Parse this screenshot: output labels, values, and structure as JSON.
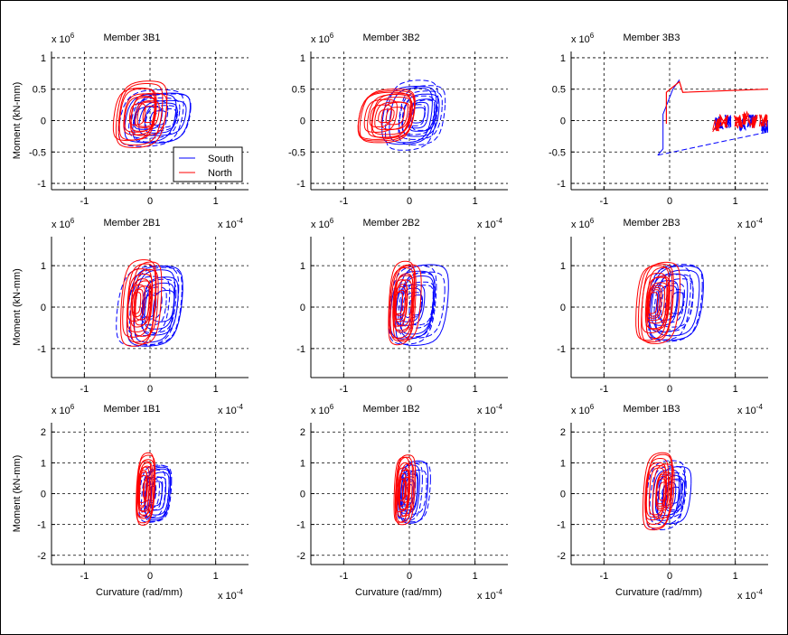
{
  "figure": {
    "background": "#ffffff",
    "axes_color": "#000000",
    "grid_color": "#000000"
  },
  "series_colors": {
    "South": "#0000ff",
    "North": "#ff0000"
  },
  "legend": {
    "entries": [
      "South",
      "North"
    ],
    "panel": 0,
    "placement": "bottom-right"
  },
  "labels": {
    "ylabel": "Moment (kN-mm)",
    "xlabel": "Curvature (rad/mm)",
    "y_exponent_base": "x 10",
    "y_exponent_power": "6",
    "x_exponent_base": "x 10",
    "x_exponent_power": "-4"
  },
  "chart_data": [
    {
      "type": "line",
      "title": "Member 3B1",
      "xlim": [
        -1.5,
        1.5
      ],
      "ylim": [
        -1.1,
        1.1
      ],
      "xticks": [
        -1,
        0,
        1
      ],
      "yticks": [
        -1,
        -0.5,
        0,
        0.5,
        1
      ],
      "ytick_labels": [
        "-1",
        "-0.5",
        "0",
        "0.5",
        "1"
      ],
      "south": {
        "x_min": -0.55,
        "x_max": 0.7,
        "y_min": -0.5,
        "y_max": 0.58
      },
      "north": {
        "x_min": -0.6,
        "x_max": 0.35,
        "y_min": -0.5,
        "y_max": 0.7
      }
    },
    {
      "type": "line",
      "title": "Member 3B2",
      "xlim": [
        -1.5,
        1.5
      ],
      "ylim": [
        -1.1,
        1.1
      ],
      "xticks": [
        -1,
        0,
        1
      ],
      "yticks": [
        -1,
        -0.5,
        0,
        0.5,
        1
      ],
      "ytick_labels": [
        "-1",
        "-0.5",
        "0",
        "0.5",
        "1"
      ],
      "south": {
        "x_min": -0.4,
        "x_max": 0.6,
        "y_min": -0.55,
        "y_max": 0.72
      },
      "north": {
        "x_min": -0.85,
        "x_max": 0.25,
        "y_min": -0.45,
        "y_max": 0.6
      }
    },
    {
      "type": "line",
      "title": "Member 3B3",
      "xlim": [
        -1.5,
        1.5
      ],
      "ylim": [
        -1.1,
        1.1
      ],
      "xticks": [
        -1,
        0,
        1
      ],
      "yticks": [
        -1,
        -0.5,
        0,
        0.5,
        1
      ],
      "ytick_labels": [
        "-1",
        "-0.5",
        "0",
        "0.5",
        "1"
      ],
      "south_line": [
        [
          -0.18,
          -0.55
        ],
        [
          1.5,
          -0.18
        ]
      ],
      "south_step": [
        [
          -0.18,
          -0.55
        ],
        [
          -0.1,
          -0.45
        ],
        [
          -0.1,
          0.1
        ],
        [
          0.05,
          0.5
        ],
        [
          0.15,
          0.65
        ]
      ],
      "north_line": [
        [
          -0.05,
          -0.05
        ],
        [
          -0.05,
          0.45
        ],
        [
          0.15,
          0.62
        ],
        [
          0.2,
          0.45
        ],
        [
          1.5,
          0.5
        ]
      ],
      "north_bursts": [
        [
          0.72,
          -0.08
        ],
        [
          0.82,
          -0.02
        ],
        [
          1.05,
          -0.03
        ],
        [
          1.18,
          0.02
        ],
        [
          1.28,
          -0.02
        ],
        [
          1.42,
          0.0
        ]
      ],
      "south_bursts": [
        [
          0.75,
          -0.05
        ],
        [
          0.9,
          -0.02
        ],
        [
          1.1,
          -0.06
        ],
        [
          1.25,
          -0.02
        ],
        [
          1.45,
          -0.1
        ]
      ]
    },
    {
      "type": "line",
      "title": "Member 2B1",
      "xlim": [
        -1.5,
        1.5
      ],
      "ylim": [
        -1.7,
        1.7
      ],
      "xticks": [
        -1,
        0,
        1
      ],
      "yticks": [
        -1,
        0,
        1
      ],
      "ytick_labels": [
        "-1",
        "0",
        "1"
      ],
      "south": {
        "x_min": -0.45,
        "x_max": 0.62,
        "y_min": -1.2,
        "y_max": 1.25
      },
      "north": {
        "x_min": -0.45,
        "x_max": 0.2,
        "y_min": -1.15,
        "y_max": 1.35
      }
    },
    {
      "type": "line",
      "title": "Member 2B2",
      "xlim": [
        -1.5,
        1.5
      ],
      "ylim": [
        -1.7,
        1.7
      ],
      "xticks": [
        -1,
        0,
        1
      ],
      "yticks": [
        -1,
        0,
        1
      ],
      "ytick_labels": [
        "-1",
        "0",
        "1"
      ],
      "south": {
        "x_min": -0.38,
        "x_max": 0.58,
        "y_min": -1.15,
        "y_max": 1.25
      },
      "north": {
        "x_min": -0.38,
        "x_max": 0.15,
        "y_min": -1.1,
        "y_max": 1.3
      }
    },
    {
      "type": "line",
      "title": "Member 2B3",
      "xlim": [
        -1.5,
        1.5
      ],
      "ylim": [
        -1.7,
        1.7
      ],
      "xticks": [
        -1,
        0,
        1
      ],
      "yticks": [
        -1,
        0,
        1
      ],
      "ytick_labels": [
        "-1",
        "0",
        "1"
      ],
      "south": {
        "x_min": -0.5,
        "x_max": 0.5,
        "y_min": -1.1,
        "y_max": 1.3
      },
      "north": {
        "x_min": -0.55,
        "x_max": 0.12,
        "y_min": -1.1,
        "y_max": 1.3
      }
    },
    {
      "type": "line",
      "title": "Member 1B1",
      "xlim": [
        -1.5,
        1.5
      ],
      "ylim": [
        -2.3,
        2.3
      ],
      "xticks": [
        -1,
        0,
        1
      ],
      "yticks": [
        -2,
        -1,
        0,
        1,
        2
      ],
      "ytick_labels": [
        "-2",
        "-1",
        "0",
        "1",
        "2"
      ],
      "south": {
        "x_min": -0.22,
        "x_max": 0.35,
        "y_min": -1.2,
        "y_max": 1.2
      },
      "north": {
        "x_min": -0.25,
        "x_max": 0.1,
        "y_min": -1.25,
        "y_max": 1.55
      }
    },
    {
      "type": "line",
      "title": "Member 1B2",
      "xlim": [
        -1.5,
        1.5
      ],
      "ylim": [
        -2.3,
        2.3
      ],
      "xticks": [
        -1,
        0,
        1
      ],
      "yticks": [
        -2,
        -1,
        0,
        1,
        2
      ],
      "ytick_labels": [
        "-2",
        "-1",
        "0",
        "1",
        "2"
      ],
      "south": {
        "x_min": -0.22,
        "x_max": 0.32,
        "y_min": -1.2,
        "y_max": 1.3
      },
      "north": {
        "x_min": -0.25,
        "x_max": 0.1,
        "y_min": -1.25,
        "y_max": 1.5
      }
    },
    {
      "type": "line",
      "title": "Member 1B3",
      "xlim": [
        -1.5,
        1.5
      ],
      "ylim": [
        -2.3,
        2.3
      ],
      "xticks": [
        -1,
        0,
        1
      ],
      "yticks": [
        -2,
        -1,
        0,
        1,
        2
      ],
      "ytick_labels": [
        "-2",
        "-1",
        "0",
        "1",
        "2"
      ],
      "south": {
        "x_min": -0.35,
        "x_max": 0.35,
        "y_min": -1.3,
        "y_max": 1.2
      },
      "north": {
        "x_min": -0.42,
        "x_max": 0.12,
        "y_min": -1.4,
        "y_max": 1.55
      }
    }
  ]
}
